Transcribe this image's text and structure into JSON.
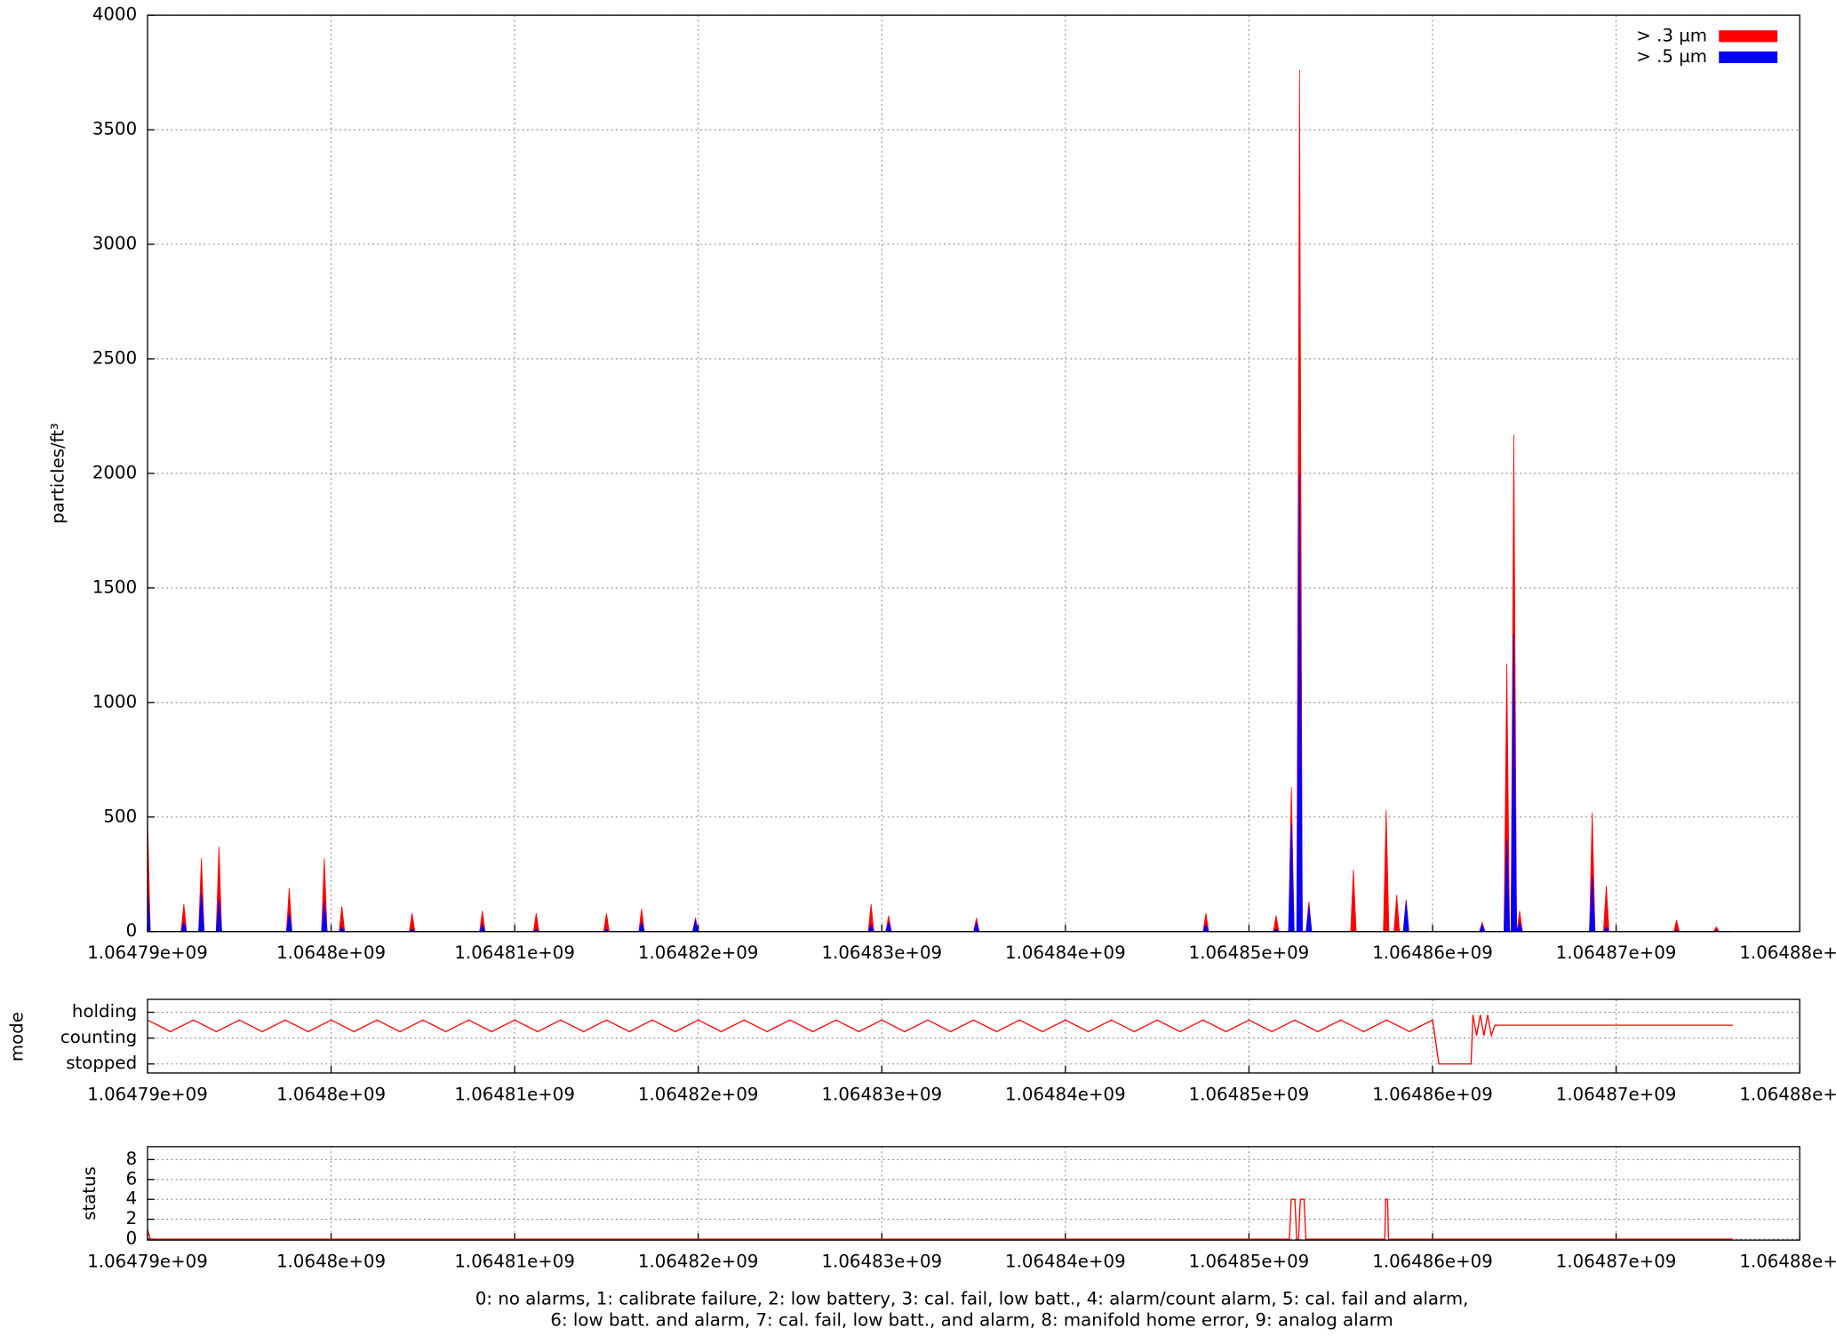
{
  "chart_data": [
    {
      "type": "area",
      "ylabel": "particles/ft³",
      "legend": "upper right",
      "grid": true,
      "xlim": [
        1064790000,
        1064880000
      ],
      "xticks": [
        {
          "value": 1064790000,
          "label": "1.06479e+09"
        },
        {
          "value": 1064800000,
          "label": "1.0648e+09"
        },
        {
          "value": 1064810000,
          "label": "1.06481e+09"
        },
        {
          "value": 1064820000,
          "label": "1.06482e+09"
        },
        {
          "value": 1064830000,
          "label": "1.06483e+09"
        },
        {
          "value": 1064840000,
          "label": "1.06484e+09"
        },
        {
          "value": 1064850000,
          "label": "1.06485e+09"
        },
        {
          "value": 1064860000,
          "label": "1.06486e+09"
        },
        {
          "value": 1064870000,
          "label": "1.06487e+09"
        },
        {
          "value": 1064880000,
          "label": "1.06488e+09"
        }
      ],
      "ylim": [
        0,
        4000
      ],
      "yticks": [
        0,
        500,
        1000,
        1500,
        2000,
        2500,
        3000,
        3500,
        4000
      ],
      "x": [
        1064790000,
        1064790150,
        1064791827,
        1064791977,
        1064792127,
        1064792784,
        1064792934,
        1064793084,
        1064793740,
        1064793890,
        1064794040,
        1064797567,
        1064797717,
        1064797867,
        1064799480,
        1064799630,
        1064799780,
        1064800437,
        1064800587,
        1064800737,
        1064804263,
        1064804413,
        1064804563,
        1064808090,
        1064808240,
        1064808390,
        1064811023,
        1064811173,
        1064811323,
        1064814850,
        1064815000,
        1064815150,
        1064816763,
        1064816913,
        1064817063,
        1064819697,
        1064819847,
        1064819997,
        1064829263,
        1064829413,
        1064829563,
        1064830220,
        1064830370,
        1064830520,
        1064835003,
        1064835153,
        1064835303,
        1064847503,
        1064847653,
        1064847803,
        1064851330,
        1064851480,
        1064851630,
        1064852159,
        1064852309,
        1064852459,
        1064852605,
        1064852755,
        1064852905,
        1064853115,
        1064853265,
        1064853415,
        1064855539,
        1064855689,
        1064855839,
        1064857324,
        1064857474,
        1064857624,
        1064857898,
        1064858048,
        1064858198,
        1064858409,
        1064858559,
        1064858709,
        1064862554,
        1064862704,
        1064862854,
        1064863894,
        1064864044,
        1064864194,
        1064864276,
        1064864426,
        1064864576,
        1064864595,
        1064864745,
        1064864895,
        1064868549,
        1064868699,
        1064868849,
        1064869314,
        1064869464,
        1064869614,
        1064873141,
        1064873291,
        1064873441,
        1064875309,
        1064875459,
        1064875609,
        1064876352
      ],
      "series": [
        {
          "name": "> .3 µm",
          "color": "#ff0000",
          "values": [
            500,
            0,
            0,
            120,
            0,
            0,
            320,
            0,
            0,
            370,
            0,
            0,
            190,
            0,
            0,
            320,
            0,
            0,
            110,
            0,
            0,
            80,
            0,
            0,
            90,
            0,
            0,
            80,
            0,
            0,
            80,
            0,
            0,
            100,
            0,
            0,
            60,
            0,
            0,
            120,
            0,
            0,
            70,
            0,
            0,
            60,
            0,
            0,
            80,
            0,
            0,
            70,
            0,
            0,
            630,
            0,
            0,
            3760,
            0,
            0,
            130,
            0,
            0,
            270,
            0,
            0,
            530,
            0,
            0,
            160,
            0,
            0,
            140,
            0,
            0,
            40,
            0,
            0,
            1170,
            0,
            0,
            2170,
            0,
            0,
            90,
            0,
            0,
            520,
            0,
            0,
            200,
            0,
            0,
            50,
            0,
            0,
            20,
            0,
            0
          ]
        },
        {
          "name": "> .5 µm",
          "color": "#0000ff",
          "values": [
            200,
            0,
            0,
            40,
            0,
            0,
            170,
            0,
            0,
            140,
            0,
            0,
            80,
            0,
            0,
            130,
            0,
            0,
            20,
            0,
            0,
            10,
            0,
            0,
            30,
            0,
            0,
            10,
            0,
            0,
            10,
            0,
            0,
            40,
            0,
            0,
            50,
            0,
            0,
            30,
            0,
            0,
            40,
            0,
            0,
            40,
            0,
            0,
            30,
            0,
            0,
            10,
            0,
            0,
            470,
            0,
            0,
            2000,
            0,
            0,
            110,
            0,
            0,
            0,
            0,
            0,
            0,
            0,
            0,
            0,
            0,
            0,
            130,
            0,
            0,
            30,
            0,
            0,
            400,
            0,
            0,
            1300,
            0,
            0,
            40,
            0,
            0,
            240,
            0,
            0,
            20,
            0,
            0,
            5,
            0,
            0,
            5,
            0,
            0
          ]
        }
      ]
    },
    {
      "type": "line",
      "ylabel": "mode",
      "grid": true,
      "color": "#ff0000",
      "xlim": [
        1064790000,
        1064880000
      ],
      "xticks": [
        {
          "value": 1064790000,
          "label": "1.06479e+09"
        },
        {
          "value": 1064800000,
          "label": "1.0648e+09"
        },
        {
          "value": 1064810000,
          "label": "1.06481e+09"
        },
        {
          "value": 1064820000,
          "label": "1.06482e+09"
        },
        {
          "value": 1064830000,
          "label": "1.06483e+09"
        },
        {
          "value": 1064840000,
          "label": "1.06484e+09"
        },
        {
          "value": 1064850000,
          "label": "1.06485e+09"
        },
        {
          "value": 1064860000,
          "label": "1.06486e+09"
        },
        {
          "value": 1064870000,
          "label": "1.06487e+09"
        },
        {
          "value": 1064880000,
          "label": "1.06488e+09"
        }
      ],
      "ylim": [
        -0.35,
        2.5
      ],
      "yticks": [
        {
          "value": 0,
          "label": "stopped"
        },
        {
          "value": 1,
          "label": "counting"
        },
        {
          "value": 2,
          "label": "holding"
        }
      ],
      "x": [
        1064790000,
        1064791250,
        1064792500,
        1064793750,
        1064795000,
        1064796250,
        1064797500,
        1064798750,
        1064800000,
        1064801250,
        1064802500,
        1064803750,
        1064805000,
        1064806250,
        1064807500,
        1064808750,
        1064810000,
        1064811250,
        1064812500,
        1064813750,
        1064815000,
        1064816250,
        1064817500,
        1064818750,
        1064820000,
        1064821250,
        1064822500,
        1064823750,
        1064825000,
        1064826250,
        1064827500,
        1064828750,
        1064830000,
        1064831250,
        1064832500,
        1064833750,
        1064835000,
        1064836250,
        1064837500,
        1064838750,
        1064840000,
        1064841250,
        1064842500,
        1064843750,
        1064845000,
        1064846250,
        1064847500,
        1064848750,
        1064850000,
        1064851250,
        1064852500,
        1064853750,
        1064855000,
        1064856250,
        1064857500,
        1064858750,
        1064860000,
        1064860345,
        1064862100,
        1064862200,
        1064862400,
        1064862600,
        1064862800,
        1064863000,
        1064863200,
        1064863400,
        1064876352
      ],
      "values": [
        1.7,
        1.25,
        1.7,
        1.25,
        1.7,
        1.25,
        1.7,
        1.25,
        1.7,
        1.25,
        1.7,
        1.25,
        1.7,
        1.25,
        1.7,
        1.25,
        1.7,
        1.25,
        1.7,
        1.25,
        1.7,
        1.25,
        1.7,
        1.25,
        1.7,
        1.25,
        1.7,
        1.25,
        1.7,
        1.25,
        1.7,
        1.25,
        1.7,
        1.25,
        1.7,
        1.25,
        1.7,
        1.25,
        1.7,
        1.25,
        1.7,
        1.25,
        1.7,
        1.25,
        1.7,
        1.25,
        1.7,
        1.25,
        1.7,
        1.25,
        1.7,
        1.25,
        1.7,
        1.25,
        1.7,
        1.25,
        1.7,
        0,
        0,
        1.9,
        1.1,
        1.9,
        1.1,
        1.9,
        1.1,
        1.5,
        1.5
      ]
    },
    {
      "type": "line",
      "ylabel": "status",
      "grid": true,
      "color": "#ff0000",
      "xlim": [
        1064790000,
        1064880000
      ],
      "xticks": [
        {
          "value": 1064790000,
          "label": "1.06479e+09"
        },
        {
          "value": 1064800000,
          "label": "1.0648e+09"
        },
        {
          "value": 1064810000,
          "label": "1.06481e+09"
        },
        {
          "value": 1064820000,
          "label": "1.06482e+09"
        },
        {
          "value": 1064830000,
          "label": "1.06483e+09"
        },
        {
          "value": 1064840000,
          "label": "1.06484e+09"
        },
        {
          "value": 1064850000,
          "label": "1.06485e+09"
        },
        {
          "value": 1064860000,
          "label": "1.06486e+09"
        },
        {
          "value": 1064870000,
          "label": "1.06487e+09"
        },
        {
          "value": 1064880000,
          "label": "1.06488e+09"
        }
      ],
      "ylim": [
        -0.1,
        9.3
      ],
      "yticks": [
        0,
        2,
        4,
        6,
        8
      ],
      "x": [
        1064790000,
        1064790150,
        1064852200,
        1064852300,
        1064852500,
        1064852600,
        1064852700,
        1064852800,
        1064853000,
        1064853100,
        1064857400,
        1064857450,
        1064857550,
        1064857600,
        1064876352
      ],
      "values": [
        1,
        0,
        0,
        4,
        4,
        0,
        0,
        4,
        4,
        0,
        0,
        4,
        4,
        0,
        0
      ],
      "annotations": [
        "0: no alarms, 1: calibrate failure, 2: low battery, 3: cal. fail, low batt., 4: alarm/count alarm, 5: cal. fail and alarm,",
        "6: low batt. and alarm, 7: cal. fail, low batt., and alarm, 8: manifold home error, 9: analog alarm"
      ]
    }
  ]
}
